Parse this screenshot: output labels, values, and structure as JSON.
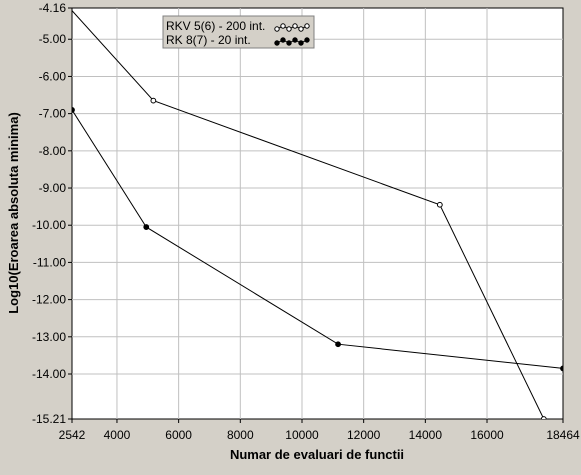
{
  "chart_data": {
    "type": "line",
    "title": "",
    "xlabel": "Numar de evaluari de functii",
    "ylabel": "Log10(Eroarea absoluta minima)",
    "xlim": [
      2542,
      18464
    ],
    "ylim": [
      -15.21,
      -4.16
    ],
    "x_ticks": [
      2542,
      4000,
      6000,
      8000,
      10000,
      12000,
      14000,
      16000,
      18464
    ],
    "x_tick_labels": [
      "2542",
      "4000",
      "6000",
      "8000",
      "10000",
      "12000",
      "14000",
      "16000",
      "18464"
    ],
    "y_ticks": [
      -4.16,
      -5.0,
      -6.0,
      -7.0,
      -8.0,
      -9.0,
      -10.0,
      -11.0,
      -12.0,
      -13.0,
      -14.0,
      -15.21
    ],
    "y_tick_labels": [
      "-4.16",
      "-5.00",
      "-6.00",
      "-7.00",
      "-8.00",
      "-9.00",
      "-10.00",
      "-11.00",
      "-12.00",
      "-13.00",
      "-14.00",
      "-15.21"
    ],
    "grid": true,
    "legend_position": "top-left",
    "series": [
      {
        "name": "RKV 5(6) - 200 int.",
        "marker": "open-circle",
        "x": [
          2290,
          5180,
          14470,
          17840
        ],
        "y": [
          -4.0,
          -6.65,
          -9.45,
          -15.21
        ]
      },
      {
        "name": "RK 8(7) - 20 int.",
        "marker": "filled-circle",
        "x": [
          2542,
          4950,
          11170,
          18464
        ],
        "y": [
          -6.9,
          -10.05,
          -13.2,
          -13.85
        ]
      }
    ]
  },
  "colors": {
    "plot_background": "#ffffff",
    "frame_background": "#d4d0c8",
    "grid": "#c0c0c0",
    "line": "#000000",
    "legend_background": "#d4d0c8"
  }
}
